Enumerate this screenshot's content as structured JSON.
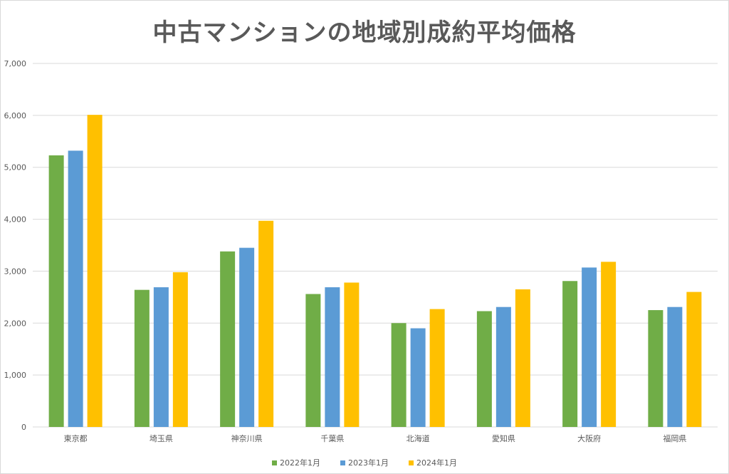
{
  "chart_data": {
    "type": "bar",
    "title": "中古マンションの地域別成約平均価格",
    "xlabel": "",
    "ylabel": "",
    "ylim": [
      0,
      7000
    ],
    "yticks": [
      0,
      1000,
      2000,
      3000,
      4000,
      5000,
      6000,
      7000
    ],
    "ytick_labels": [
      "0",
      "1,000",
      "2,000",
      "3,000",
      "4,000",
      "5,000",
      "6,000",
      "7,000"
    ],
    "grid": true,
    "legend_position": "bottom",
    "categories": [
      "東京都",
      "埼玉県",
      "神奈川県",
      "千葉県",
      "北海道",
      "愛知県",
      "大阪府",
      "福岡県"
    ],
    "series": [
      {
        "name": "2022年1月",
        "color": "#70ad47",
        "values": [
          5230,
          2640,
          3380,
          2560,
          2000,
          2230,
          2810,
          2250
        ]
      },
      {
        "name": "2023年1月",
        "color": "#5b9bd5",
        "values": [
          5320,
          2690,
          3450,
          2690,
          1900,
          2310,
          3070,
          2310
        ]
      },
      {
        "name": "2024年1月",
        "color": "#ffc000",
        "values": [
          6010,
          2980,
          3970,
          2780,
          2270,
          2650,
          3180,
          2600
        ]
      }
    ]
  }
}
